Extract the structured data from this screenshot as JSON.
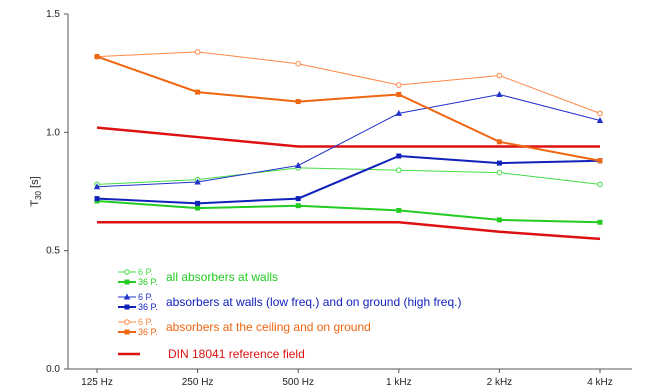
{
  "chart_data": {
    "type": "line",
    "categories": [
      "125 Hz",
      "250 Hz",
      "500 Hz",
      "1 kHz",
      "2 kHz",
      "4 kHz"
    ],
    "ylim": [
      0.0,
      1.5
    ],
    "y_ticks": [
      "0.0",
      "0.5",
      "1.0",
      "1.5"
    ],
    "ylabel": "T",
    "ylabel_sub": "30",
    "ylabel_unit": " [s]",
    "grid": false,
    "legend_placement": "bottom-left",
    "series": [
      {
        "key": "walls_6",
        "name": "6 P.",
        "values": [
          0.78,
          0.8,
          0.85,
          0.84,
          0.83,
          0.78
        ],
        "color": "#44dd44",
        "style": "thin",
        "marker": "circle-open"
      },
      {
        "key": "walls_36",
        "name": "36 P.",
        "values": [
          0.71,
          0.68,
          0.69,
          0.67,
          0.63,
          0.62
        ],
        "color": "#22cc22",
        "style": "thick",
        "marker": "square"
      },
      {
        "key": "ground_6",
        "name": "6 P.",
        "values": [
          0.77,
          0.79,
          0.86,
          1.08,
          1.16,
          1.05
        ],
        "color": "#2233cc",
        "style": "thin",
        "marker": "triangle"
      },
      {
        "key": "ground_36",
        "name": "36 P.",
        "values": [
          0.72,
          0.7,
          0.72,
          0.9,
          0.87,
          0.88
        ],
        "color": "#1122bb",
        "style": "thick",
        "marker": "square"
      },
      {
        "key": "ceiling_6",
        "name": "6 P.",
        "values": [
          1.32,
          1.34,
          1.29,
          1.2,
          1.24,
          1.08
        ],
        "color": "#ff8844",
        "style": "thin",
        "marker": "circle-open"
      },
      {
        "key": "ceiling_36",
        "name": "36 P.",
        "values": [
          1.32,
          1.17,
          1.13,
          1.16,
          0.96,
          0.88
        ],
        "color": "#ee6611",
        "style": "thick",
        "marker": "square"
      }
    ],
    "reference_field": {
      "upper": [
        1.02,
        0.98,
        0.94,
        0.94,
        0.94,
        0.94
      ],
      "lower": [
        0.62,
        0.62,
        0.62,
        0.62,
        0.58,
        0.55
      ],
      "color": "#dd1111"
    },
    "legend": [
      {
        "series": [
          "walls_6",
          "walls_36"
        ],
        "label": "all absorbers at walls",
        "color": "#22cc22"
      },
      {
        "series": [
          "ground_6",
          "ground_36"
        ],
        "label": "absorbers at walls (low freq.) and on ground (high freq.)",
        "color": "#1122bb"
      },
      {
        "series": [
          "ceiling_6",
          "ceiling_36"
        ],
        "label": "absorbers at the ceiling and on ground",
        "color": "#ee6611"
      },
      {
        "series": [
          "reference"
        ],
        "label": "DIN 18041  reference field",
        "color": "#dd1111"
      }
    ]
  }
}
